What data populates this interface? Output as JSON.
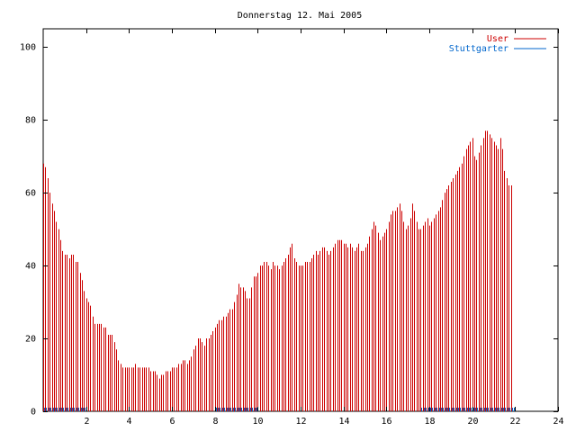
{
  "chart_data": {
    "type": "bar",
    "title": "Donnerstag 12. Mai 2005",
    "xlabel": "",
    "ylabel": "",
    "xlim": [
      0,
      24
    ],
    "ylim": [
      0,
      105
    ],
    "x_ticks": [
      2,
      4,
      6,
      8,
      10,
      12,
      14,
      16,
      18,
      20,
      22,
      24
    ],
    "y_ticks": [
      0,
      20,
      40,
      60,
      80,
      100
    ],
    "grid": false,
    "legend_position": "top-right",
    "bar_interval_hours": 0.1,
    "series": [
      {
        "name": "User",
        "color": "#cc0000",
        "values": [
          68,
          67,
          64,
          60,
          57,
          55,
          52,
          50,
          47,
          44,
          43,
          43,
          42,
          43,
          43,
          41,
          41,
          38,
          36,
          33,
          31,
          30,
          29,
          26,
          24,
          24,
          24,
          24,
          23,
          23,
          21,
          21,
          21,
          19,
          17,
          14,
          13,
          12,
          12,
          12,
          12,
          12,
          12,
          13,
          12,
          12,
          12,
          12,
          12,
          12,
          11,
          11,
          11,
          10,
          9,
          10,
          10,
          11,
          11,
          11,
          12,
          12,
          12,
          13,
          13,
          14,
          14,
          13,
          14,
          15,
          17,
          18,
          20,
          20,
          19,
          18,
          20,
          20,
          21,
          22,
          23,
          24,
          25,
          25,
          26,
          26,
          27,
          28,
          28,
          30,
          32,
          35,
          34,
          34,
          33,
          31,
          31,
          34,
          37,
          37,
          38,
          40,
          40,
          41,
          41,
          40,
          39,
          41,
          40,
          40,
          39,
          40,
          41,
          42,
          43,
          45,
          46,
          42,
          41,
          40,
          40,
          40,
          41,
          41,
          41,
          42,
          43,
          44,
          43,
          44,
          45,
          45,
          44,
          43,
          44,
          45,
          46,
          47,
          47,
          47,
          46,
          46,
          45,
          46,
          45,
          44,
          45,
          46,
          44,
          44,
          45,
          46,
          48,
          50,
          52,
          51,
          49,
          47,
          48,
          49,
          50,
          52,
          54,
          55,
          55,
          56,
          57,
          55,
          52,
          50,
          51,
          53,
          57,
          55,
          52,
          50,
          50,
          51,
          52,
          53,
          51,
          52,
          53,
          54,
          55,
          56,
          58,
          60,
          61,
          62,
          63,
          64,
          65,
          66,
          67,
          68,
          70,
          72,
          73,
          74,
          75,
          70,
          69,
          71,
          73,
          75,
          77,
          77,
          76,
          75,
          74,
          73,
          72,
          75,
          72,
          66,
          64,
          62,
          62
        ]
      },
      {
        "name": "Stuttgarter",
        "color": "#0066cc",
        "values": [
          1,
          1,
          1,
          1,
          1,
          1,
          1,
          1,
          1,
          1,
          1,
          1,
          1,
          1,
          1,
          1,
          1,
          1,
          1,
          1,
          0,
          0,
          0,
          0,
          0,
          0,
          0,
          0,
          0,
          0,
          0,
          0,
          0,
          0,
          0,
          0,
          0,
          0,
          0,
          0,
          0,
          0,
          0,
          0,
          0,
          0,
          0,
          0,
          0,
          0,
          0,
          0,
          0,
          0,
          0,
          0,
          0,
          0,
          0,
          0,
          0,
          0,
          0,
          0,
          0,
          0,
          0,
          0,
          0,
          0,
          0,
          0,
          0,
          0,
          0,
          0,
          0,
          0,
          0,
          0,
          1,
          1,
          1,
          1,
          1,
          1,
          1,
          1,
          1,
          1,
          1,
          1,
          1,
          1,
          1,
          1,
          1,
          1,
          1,
          1,
          0,
          0,
          0,
          0,
          0,
          0,
          0,
          0,
          0,
          0,
          0,
          0,
          0,
          0,
          0,
          0,
          0,
          0,
          0,
          0,
          0,
          0,
          0,
          0,
          0,
          0,
          0,
          0,
          0,
          0,
          0,
          0,
          0,
          0,
          0,
          0,
          0,
          0,
          0,
          0,
          0,
          0,
          0,
          0,
          0,
          0,
          0,
          0,
          0,
          0,
          0,
          0,
          0,
          0,
          0,
          0,
          0,
          0,
          0,
          0,
          0,
          0,
          0,
          0,
          0,
          0,
          0,
          0,
          0,
          0,
          0,
          0,
          0,
          0,
          0,
          0,
          1,
          1,
          1,
          1,
          1,
          1,
          1,
          1,
          1,
          1,
          1,
          1,
          1,
          1,
          1,
          1,
          1,
          1,
          1,
          1,
          1,
          1,
          1,
          1,
          1,
          1,
          1,
          1,
          1,
          1,
          1,
          1,
          1,
          1,
          1,
          1,
          1,
          1,
          1,
          1,
          1,
          1,
          1,
          1
        ]
      }
    ]
  }
}
